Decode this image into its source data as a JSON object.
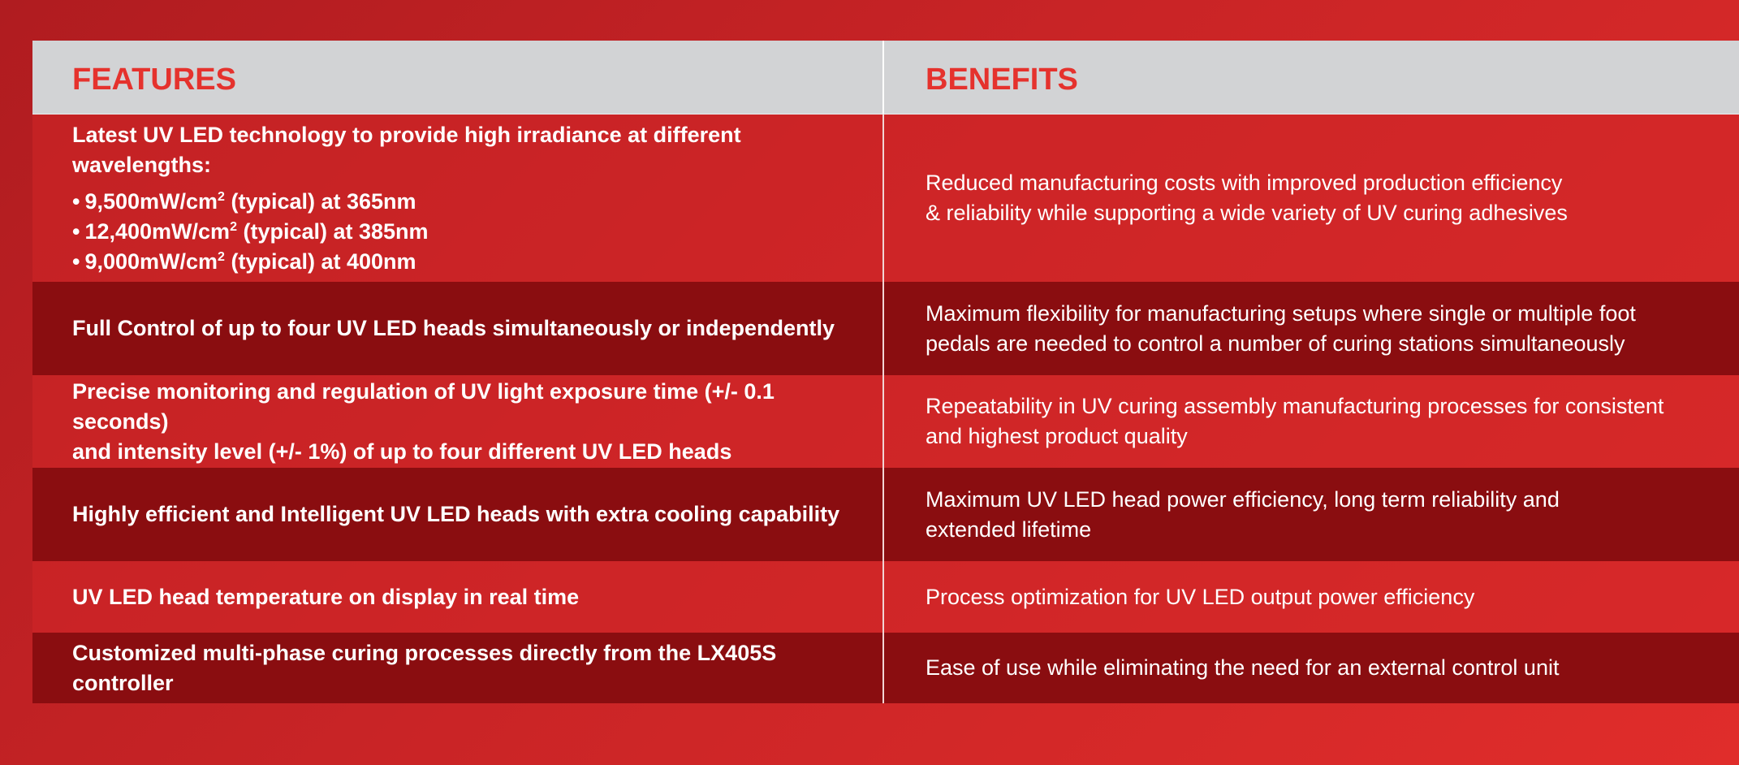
{
  "table": {
    "header": {
      "features": "FEATURES",
      "benefits": "BENEFITS"
    },
    "rows": [
      {
        "feature_lines": [
          "Latest UV LED technology to provide high irradiance at different wavelengths:"
        ],
        "bullets": [
          {
            "value": "9,500mW/cm",
            "exp": "2",
            "rest": " (typical) at 365nm"
          },
          {
            "value": "12,400mW/cm",
            "exp": "2",
            "rest": " (typical) at 385nm"
          },
          {
            "value": "9,000mW/cm",
            "exp": "2",
            "rest": " (typical) at 400nm"
          }
        ],
        "benefit_lines": [
          "Reduced manufacturing costs with improved production efficiency",
          "& reliability while supporting a wide variety of UV curing adhesives"
        ]
      },
      {
        "feature_lines": [
          "Full Control of up to four UV LED heads simultaneously or independently"
        ],
        "benefit_lines": [
          "Maximum flexibility for manufacturing setups where single or multiple foot",
          "pedals are needed to control a number of curing stations simultaneously"
        ]
      },
      {
        "feature_lines": [
          "Precise monitoring and regulation of UV light exposure time (+/- 0.1 seconds)",
          "and intensity level (+/- 1%) of up to four different UV LED heads"
        ],
        "benefit_lines": [
          "Repeatability in UV curing assembly manufacturing processes for consistent",
          "and highest product quality"
        ]
      },
      {
        "feature_lines": [
          "Highly efficient and Intelligent UV LED heads with extra cooling capability"
        ],
        "benefit_lines": [
          "Maximum UV LED head power efficiency, long term reliability and",
          "extended lifetime"
        ]
      },
      {
        "feature_lines": [
          "UV LED head temperature on display in real time"
        ],
        "benefit_lines": [
          "Process optimization for UV LED output power efficiency"
        ]
      },
      {
        "feature_lines": [
          "Customized multi-phase curing processes directly from the LX405S controller"
        ],
        "benefit_lines": [
          "Ease of use while eliminating the need for an external control unit"
        ]
      }
    ]
  }
}
